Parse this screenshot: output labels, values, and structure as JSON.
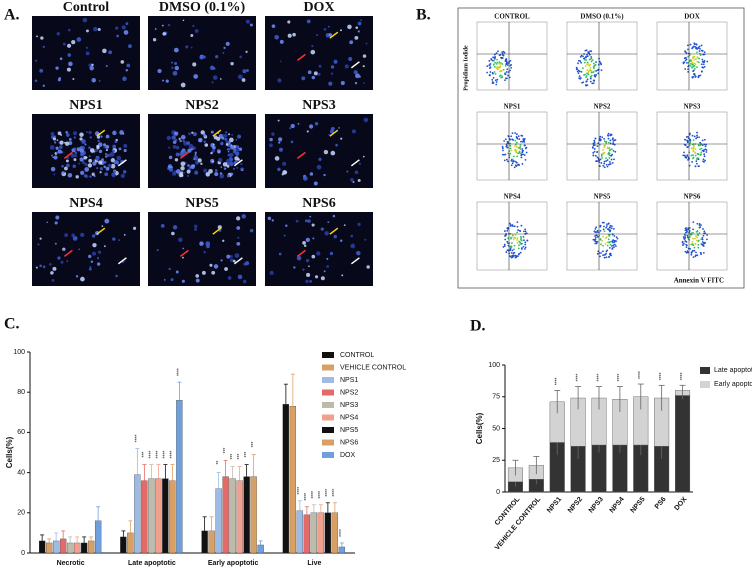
{
  "panel_a": {
    "label": "A.",
    "images": [
      "Control",
      "DMSO (0.1%)",
      "DOX",
      "NPS1",
      "NPS2",
      "NPS3",
      "NPS4",
      "NPS5",
      "NPS6"
    ]
  },
  "panel_b": {
    "label": "B.",
    "y_axis": "Propidium Iodide",
    "x_axis": "Annexin V FITC",
    "plots": [
      "CONTROL",
      "DMSO (0.1%)",
      "DOX",
      "NPS1",
      "NPS2",
      "NPS3",
      "NPS4",
      "NPS5",
      "NPS6"
    ]
  },
  "chart_data": [
    {
      "type": "bar",
      "panel": "C.",
      "y_label": "Cells(%)",
      "categories": [
        "Necrotic",
        "Late apoptotic",
        "Early apoptotic",
        "Live"
      ],
      "ylim": [
        0,
        100
      ],
      "yticks": [
        0,
        20,
        40,
        60,
        80,
        100
      ],
      "series": [
        {
          "name": "CONTROL",
          "color": "#111111",
          "values": [
            6,
            8,
            11,
            74
          ],
          "errors": [
            3,
            3,
            7,
            10
          ],
          "significance": [
            null,
            null,
            null,
            null
          ]
        },
        {
          "name": "VEHICLE CONTROL",
          "color": "#d9a066",
          "values": [
            5,
            10,
            11,
            73
          ],
          "errors": [
            2,
            6,
            7,
            16
          ],
          "significance": [
            null,
            null,
            null,
            null
          ]
        },
        {
          "name": "NPS1",
          "color": "#9dbbe3",
          "values": [
            6,
            39,
            32,
            21
          ],
          "errors": [
            4,
            13,
            8,
            5
          ],
          "significance": [
            null,
            "****",
            "**",
            "****"
          ]
        },
        {
          "name": "NPS2",
          "color": "#e46a6a",
          "values": [
            7,
            36,
            38,
            19
          ],
          "errors": [
            4,
            8,
            8,
            4
          ],
          "significance": [
            null,
            "***",
            "***",
            "****"
          ]
        },
        {
          "name": "NPS3",
          "color": "#bdbcaa",
          "values": [
            5,
            37,
            37,
            20
          ],
          "errors": [
            3,
            7,
            6,
            4
          ],
          "significance": [
            null,
            "****",
            "***",
            "****"
          ]
        },
        {
          "name": "NPS4",
          "color": "#f2a08e",
          "values": [
            5,
            37,
            36,
            20
          ],
          "errors": [
            3,
            7,
            7,
            4
          ],
          "significance": [
            null,
            "****",
            "***",
            "****"
          ]
        },
        {
          "name": "NPS5",
          "color": "#111111",
          "values": [
            5,
            37,
            38,
            20
          ],
          "errors": [
            3,
            7,
            6,
            5
          ],
          "significance": [
            null,
            "****",
            "***",
            "****"
          ]
        },
        {
          "name": "NPS6",
          "color": "#d9a066",
          "values": [
            6,
            36,
            38,
            20
          ],
          "errors": [
            2,
            8,
            11,
            5
          ],
          "significance": [
            null,
            "****",
            "***",
            "****"
          ]
        },
        {
          "name": "DOX",
          "color": "#6f9fdc",
          "values": [
            16,
            76,
            4,
            3
          ],
          "errors": [
            7,
            9,
            2,
            2
          ],
          "significance": [
            null,
            "****",
            null,
            "****"
          ]
        }
      ]
    },
    {
      "type": "stacked_bar",
      "panel": "D.",
      "y_label": "Cells(%)",
      "categories": [
        "CONTROL",
        "VEHICLE CONTROL",
        "NPS1",
        "NPS2",
        "NPS3",
        "NPS4",
        "NPS5",
        "PS6",
        "DOX"
      ],
      "ylim": [
        0,
        100
      ],
      "yticks": [
        0,
        25,
        50,
        75,
        100
      ],
      "series": [
        {
          "name": "Late apoptotic",
          "color": "#333333",
          "values": [
            8,
            10,
            39,
            36,
            37,
            37,
            37,
            36,
            76
          ],
          "errors": [
            4,
            4,
            10,
            10,
            6,
            6,
            8,
            10,
            3
          ]
        },
        {
          "name": "Early apoptotic",
          "color": "#d3d3d3",
          "values": [
            11,
            11,
            32,
            38,
            37,
            36,
            38,
            38,
            4
          ],
          "errors": [
            6,
            7,
            9,
            9,
            9,
            10,
            10,
            10,
            4
          ]
        }
      ],
      "significance": [
        null,
        null,
        "****",
        "****",
        "****",
        "****",
        "****",
        "****",
        "****"
      ]
    }
  ]
}
